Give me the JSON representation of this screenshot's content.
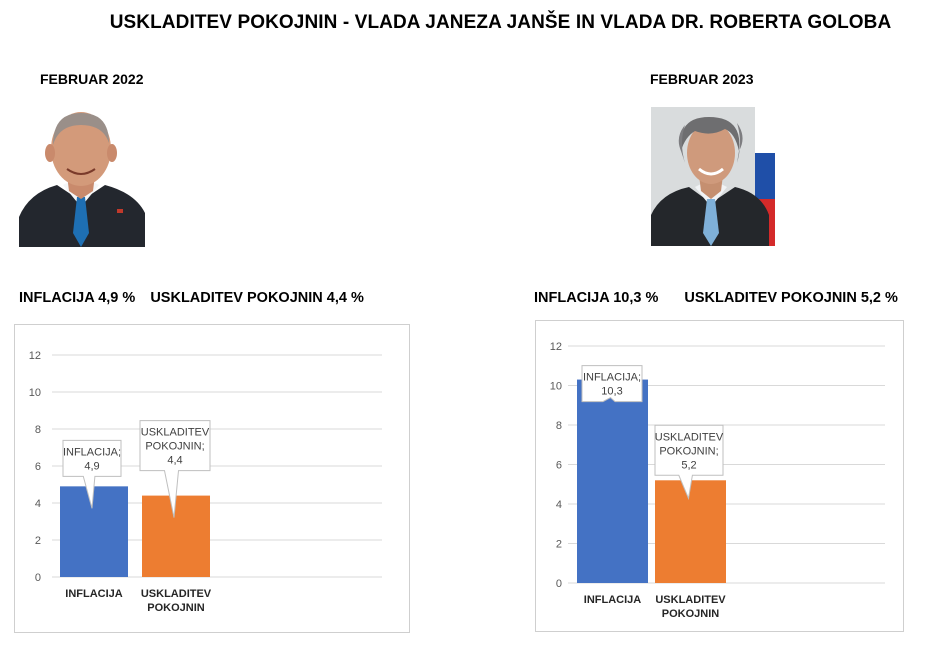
{
  "title": "USKLADITEV POKOJNIN - VLADA JANEZA JANŠE IN VLADA DR. ROBERTA GOLOBA",
  "left": {
    "period": "FEBRUAR 2022",
    "inflation_text": "INFLACIJA 4,9 %",
    "pension_text": "USKLADITEV POKOJNIN 4,4 %"
  },
  "right": {
    "period": "FEBRUAR 2023",
    "inflation_text": "INFLACIJA 10,3 %",
    "pension_text": "USKLADITEV POKOJNIN 5,2 %"
  },
  "chart_data": [
    {
      "type": "bar",
      "categories": [
        [
          "INFLACIJA"
        ],
        [
          "USKLADITEV",
          "POKOJNIN"
        ]
      ],
      "values": [
        4.9,
        4.4
      ],
      "value_labels": [
        [
          "INFLACIJA;",
          "4,9"
        ],
        [
          "USKLADITEV",
          "POKOJNIN;",
          "4,4"
        ]
      ],
      "colors": [
        "#4472C4",
        "#ED7D31"
      ],
      "ylim": [
        0,
        12
      ],
      "yticks": [
        0,
        2,
        4,
        6,
        8,
        10,
        12
      ],
      "grid": true,
      "title": "",
      "xlabel": "",
      "ylabel": ""
    },
    {
      "type": "bar",
      "categories": [
        [
          "INFLACIJA"
        ],
        [
          "USKLADITEV",
          "POKOJNIN"
        ]
      ],
      "values": [
        10.3,
        5.2
      ],
      "value_labels": [
        [
          "INFLACIJA;",
          "10,3"
        ],
        [
          "USKLADITEV",
          "POKOJNIN;",
          "5,2"
        ]
      ],
      "colors": [
        "#4472C4",
        "#ED7D31"
      ],
      "ylim": [
        0,
        12
      ],
      "yticks": [
        0,
        2,
        4,
        6,
        8,
        10,
        12
      ],
      "grid": true,
      "title": "",
      "xlabel": "",
      "ylabel": ""
    }
  ]
}
